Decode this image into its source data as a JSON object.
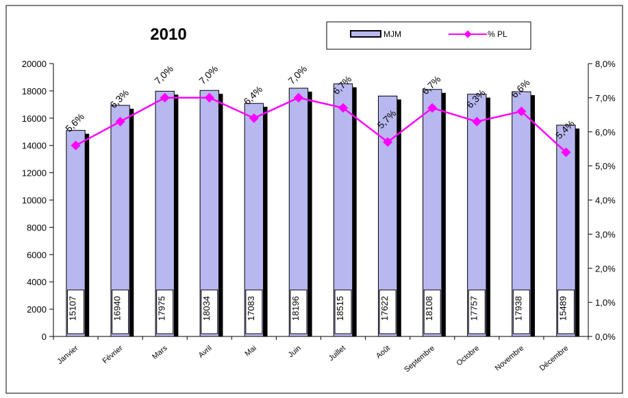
{
  "chart_data": {
    "type": "bar",
    "title": "2010",
    "categories": [
      "Janvier",
      "Février",
      "Mars",
      "Avril",
      "Mai",
      "Juin",
      "Juillet",
      "Août",
      "Septembre",
      "Octobre",
      "Novembre",
      "Décembre"
    ],
    "series": [
      {
        "name": "MJM",
        "type": "bar",
        "axis": "left",
        "color": "#b8b8f0",
        "values": [
          15107,
          16940,
          17975,
          18034,
          17083,
          18196,
          18515,
          17622,
          18108,
          17757,
          17938,
          15489
        ],
        "labels": [
          "15107",
          "16940",
          "17975",
          "18034",
          "17083",
          "18196",
          "18515",
          "17622",
          "18108",
          "17757",
          "17938",
          "15489"
        ]
      },
      {
        "name": "% PL",
        "type": "line",
        "axis": "right",
        "color": "#ff00ff",
        "values": [
          5.6,
          6.3,
          7.0,
          7.0,
          6.4,
          7.0,
          6.7,
          5.7,
          6.7,
          6.3,
          6.6,
          5.4
        ],
        "labels": [
          "5,6%",
          "6,3%",
          "7,0%",
          "7,0%",
          "6,4%",
          "7,0%",
          "6,7%",
          "5,7%",
          "6,7%",
          "6,3%",
          "6,6%",
          "5,4%"
        ]
      }
    ],
    "y_left": {
      "min": 0,
      "max": 20000,
      "step": 2000,
      "ticks": [
        "0",
        "2000",
        "4000",
        "6000",
        "8000",
        "10000",
        "12000",
        "14000",
        "16000",
        "18000",
        "20000"
      ]
    },
    "y_right": {
      "min": 0,
      "max": 8,
      "step": 1,
      "ticks": [
        "0,0%",
        "1,0%",
        "2,0%",
        "3,0%",
        "4,0%",
        "5,0%",
        "6,0%",
        "7,0%",
        "8,0%"
      ]
    },
    "grid": false,
    "legend_position": "top-center"
  }
}
